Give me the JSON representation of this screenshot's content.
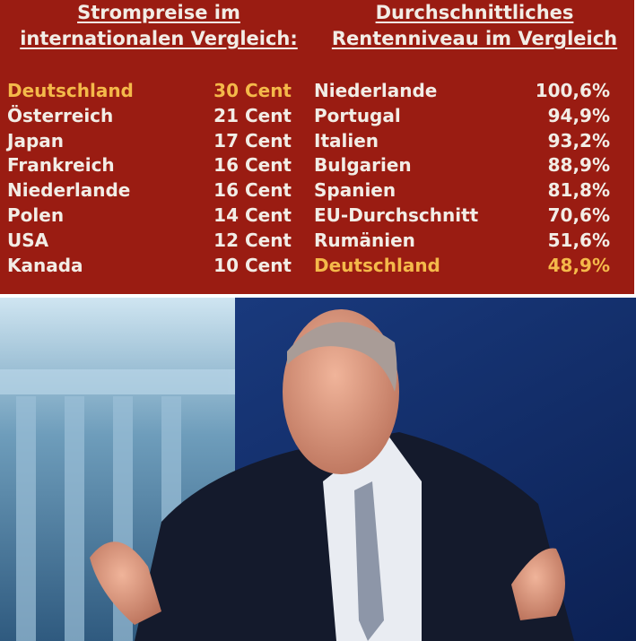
{
  "left_table": {
    "title_lines": [
      "Strompreise im",
      "internationalen Vergleich:"
    ],
    "rows": [
      [
        "Deutschland",
        "30 Cent"
      ],
      [
        "Österreich",
        "21 Cent"
      ],
      [
        "Japan",
        "17 Cent"
      ],
      [
        "Frankreich",
        "16 Cent"
      ],
      [
        "Niederlande",
        "16 Cent"
      ],
      [
        "Polen",
        "14 Cent"
      ],
      [
        "USA",
        "12 Cent"
      ],
      [
        "Kanada",
        "10 Cent"
      ]
    ]
  },
  "right_table": {
    "title_lines": [
      "Durchschnittliches",
      "Rentenniveau im Vergleich"
    ],
    "rows": [
      [
        "Niederlande",
        "100,6%"
      ],
      [
        "Portugal",
        "94,9%"
      ],
      [
        "Italien",
        "93,2%"
      ],
      [
        "Bulgarien",
        "88,9%"
      ],
      [
        "Spanien",
        "81,8%"
      ],
      [
        "EU-Durchschnitt",
        "70,6%"
      ],
      [
        "Rumänien",
        "51,6%"
      ],
      [
        "Deutschland",
        "48,9%"
      ]
    ]
  }
}
